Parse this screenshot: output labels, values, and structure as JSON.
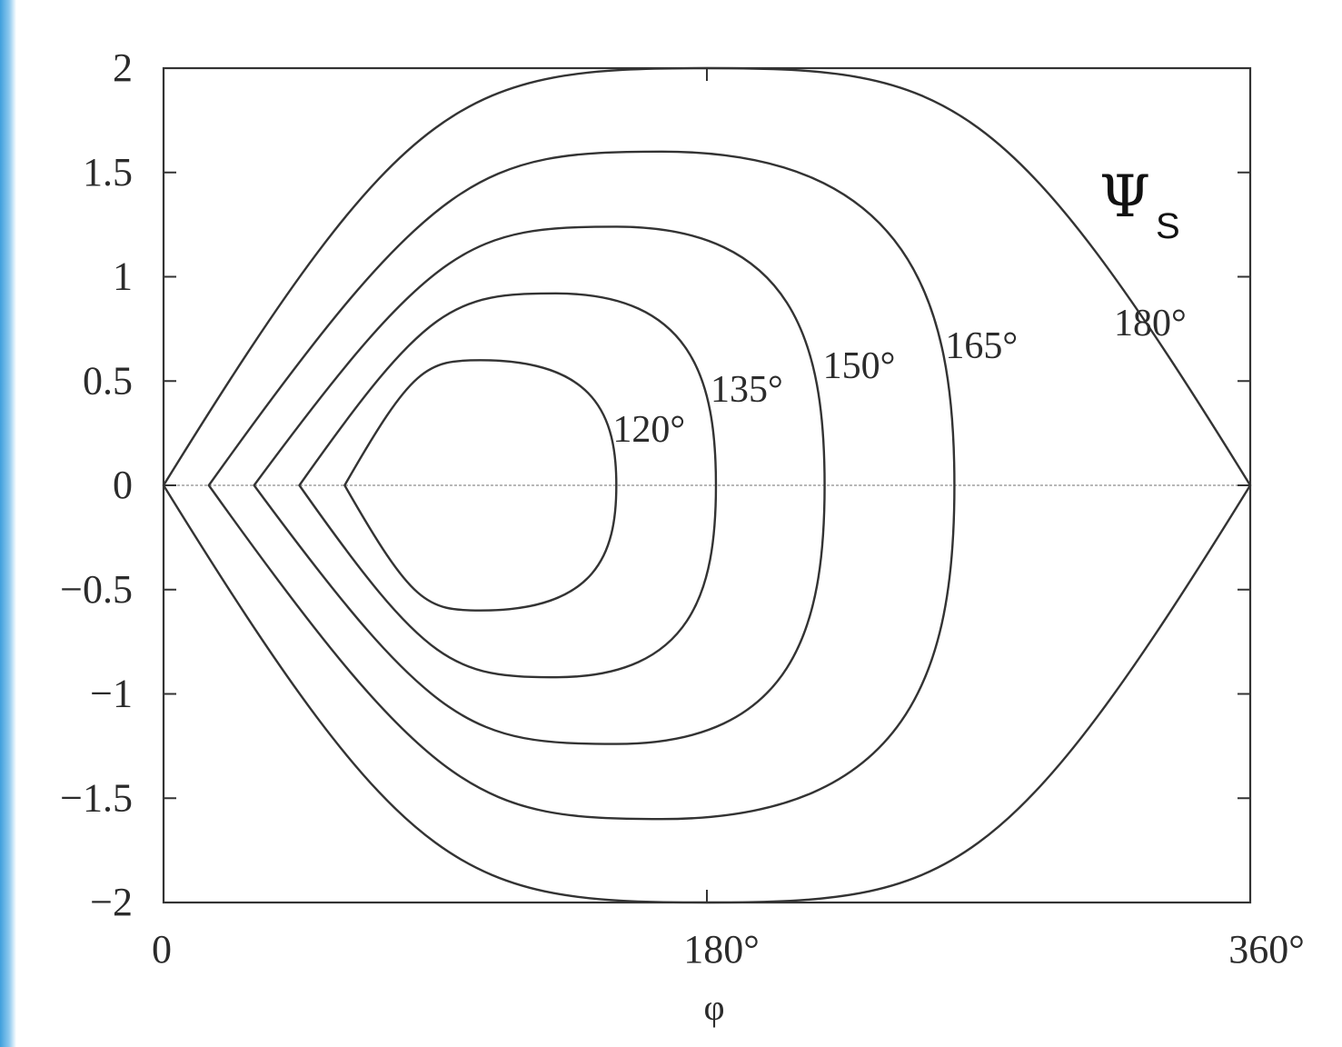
{
  "chart_data": {
    "type": "line",
    "title": "",
    "xlabel": "φ",
    "ylabel": "",
    "xlim": [
      0,
      360
    ],
    "ylim": [
      -2,
      2
    ],
    "x_ticks": [
      {
        "value": 0,
        "label": "0"
      },
      {
        "value": 180,
        "label": "180°"
      },
      {
        "value": 360,
        "label": "360°"
      }
    ],
    "y_ticks": [
      {
        "value": 2,
        "label": "2"
      },
      {
        "value": 1.5,
        "label": "1.5"
      },
      {
        "value": 1,
        "label": "1"
      },
      {
        "value": 0.5,
        "label": "0.5"
      },
      {
        "value": 0,
        "label": "0"
      },
      {
        "value": -0.5,
        "label": "−0.5"
      },
      {
        "value": -1,
        "label": "−1"
      },
      {
        "value": -1.5,
        "label": "−1.5"
      },
      {
        "value": -2,
        "label": "−2"
      }
    ],
    "annotation": {
      "symbol": "Ψ",
      "subscript": "S"
    },
    "series": [
      {
        "label": "120°",
        "phi_min": 60,
        "phi_max": 150,
        "peak_phi": 105,
        "amplitude": 0.6
      },
      {
        "label": "135°",
        "phi_min": 45,
        "phi_max": 183,
        "peak_phi": 130,
        "amplitude": 0.92
      },
      {
        "label": "150°",
        "phi_min": 30,
        "phi_max": 219,
        "peak_phi": 150,
        "amplitude": 1.24
      },
      {
        "label": "165°",
        "phi_min": 15,
        "phi_max": 262,
        "peak_phi": 165,
        "amplitude": 1.6
      },
      {
        "label": "180°",
        "phi_min": 0,
        "phi_max": 360,
        "peak_phi": 180,
        "amplitude": 2.0
      }
    ],
    "grid": false
  }
}
